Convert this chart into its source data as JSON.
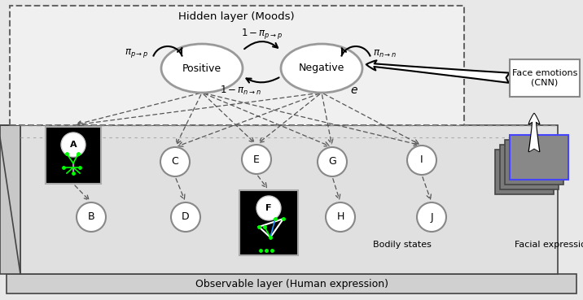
{
  "title_hidden": "Hidden layer (Moods)",
  "title_observable": "Observable layer (Human expression)",
  "positive_label": "Positive",
  "negative_label": "Negative",
  "face_emotions_label": "Face emotions\n(CNN)",
  "bodily_states_label": "Bodily states",
  "facial_expression_label": "Facial expression",
  "node_labels": [
    "A",
    "B",
    "C",
    "D",
    "E",
    "F",
    "G",
    "H",
    "I",
    "J"
  ],
  "pi_pp_label": "$\\pi_{p\\rightarrow p}$",
  "pi_nn_label": "$\\pi_{n\\rightarrow n}$",
  "one_minus_pi_pp_label": "$1-\\pi_{p\\rightarrow p}$",
  "one_minus_pi_nn_label": "$1-\\pi_{n\\rightarrow n}$",
  "e_label": "$e$",
  "bg_color": "#e8e8e8"
}
